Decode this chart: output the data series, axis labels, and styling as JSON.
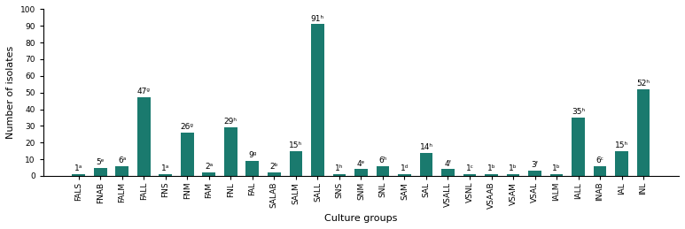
{
  "categories": [
    "FALS",
    "FNAB",
    "FALM",
    "FALL",
    "FNS",
    "FNM",
    "FAM",
    "FNL",
    "FAL",
    "SALAB",
    "SALM",
    "SALL",
    "SNS",
    "SNM",
    "SNL",
    "SAM",
    "SAL",
    "VSALL",
    "VSNL",
    "VSAAB",
    "VSAM",
    "VSAL",
    "IALM",
    "IALL",
    "INAB",
    "IAL",
    "INL"
  ],
  "values": [
    1,
    5,
    6,
    47,
    1,
    26,
    2,
    29,
    9,
    2,
    15,
    91,
    1,
    4,
    6,
    1,
    14,
    4,
    1,
    1,
    1,
    3,
    1,
    35,
    6,
    15,
    52
  ],
  "labels": [
    "1ᵃ",
    "5ᵉ",
    "6ᵃ",
    "47ᵍ",
    "1ᵃ",
    "26ᵍ",
    "2ᵃ",
    "29ʰ",
    "9ᵍ",
    "2ᵇ",
    "15ʰ",
    "91ʰ",
    "1ʰ",
    "4ᵉ",
    "6ʰ",
    "1ᵈ",
    "14ʰ",
    "4ᶠ",
    "1ᶜ",
    "1ᵇ",
    "1ᵇ",
    "3ᶠ",
    "1ᵇ",
    "35ʰ",
    "6ᶜ",
    "15ʰ",
    "52ʰ"
  ],
  "bar_color": "#1a7a6e",
  "ylabel": "Number of isolates",
  "xlabel": "Culture groups",
  "ylim": [
    0,
    100
  ],
  "yticks": [
    0,
    10,
    20,
    30,
    40,
    50,
    60,
    70,
    80,
    90,
    100
  ],
  "label_fontsize": 6.5,
  "axis_label_fontsize": 8,
  "tick_fontsize": 6.5
}
